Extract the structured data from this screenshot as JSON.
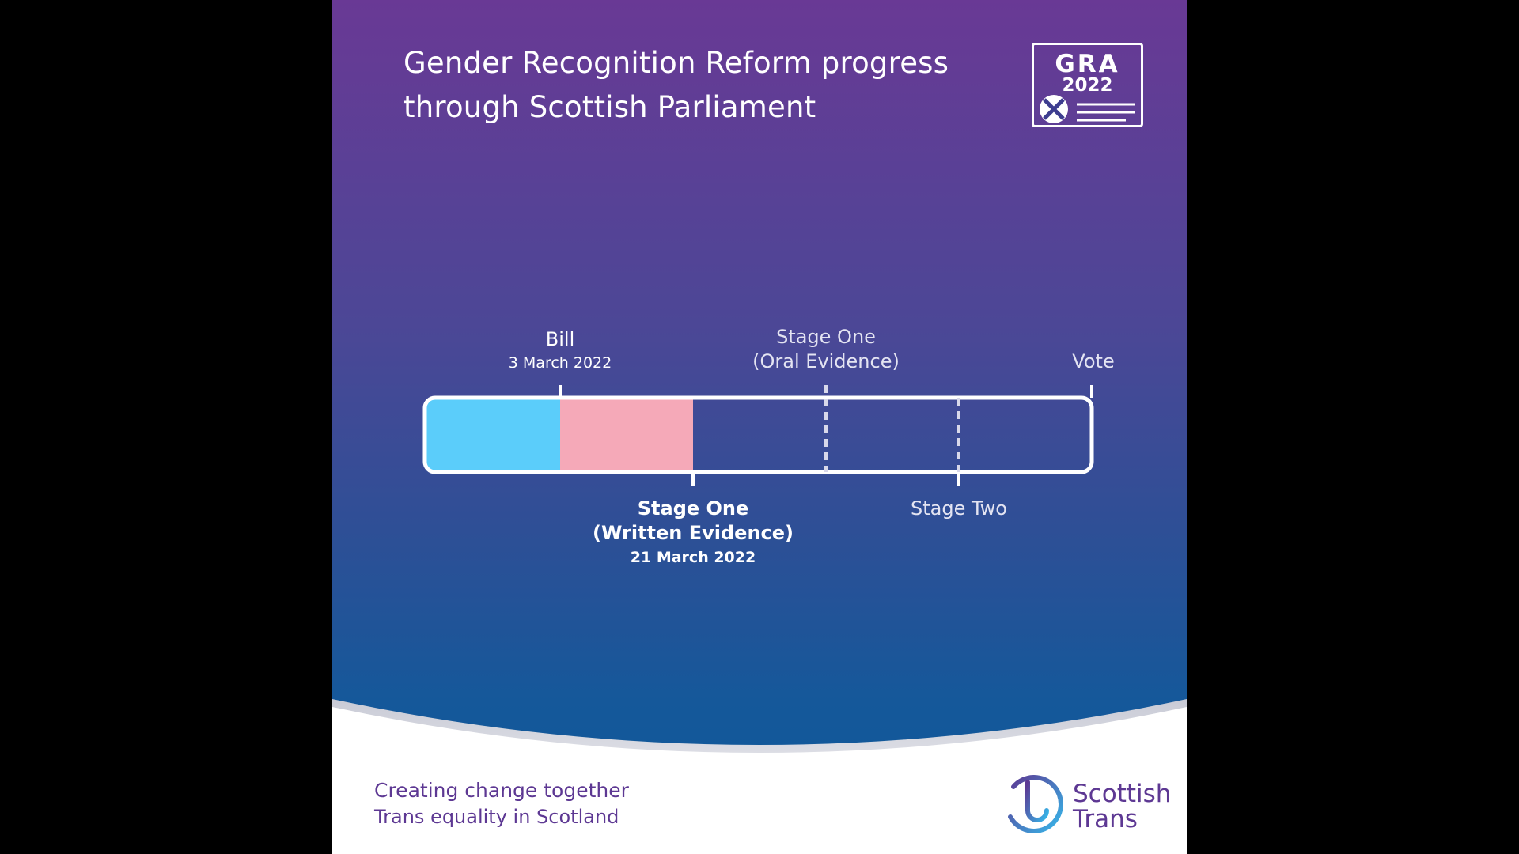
{
  "header": {
    "title_line1": "Gender Recognition Reform progress",
    "title_line2": "through Scottish Parliament",
    "badge_line1": "GRA",
    "badge_line2": "2022"
  },
  "timeline": {
    "colors": {
      "completed": "#5bcdfa",
      "current": "#f5a9b8",
      "outline": "#ffffff"
    },
    "segments": [
      {
        "label": "Bill",
        "date": "3 March 2022",
        "status": "completed"
      },
      {
        "label": "Stage One (Written Evidence)",
        "date": "21 March 2022",
        "status": "current"
      },
      {
        "label": "Stage One (Oral Evidence)",
        "status": "pending"
      },
      {
        "label": "Stage Two",
        "status": "pending"
      },
      {
        "label": "Vote",
        "status": "pending"
      }
    ],
    "labels": {
      "bill": "Bill",
      "bill_date": "3 March 2022",
      "oral_line1": "Stage One",
      "oral_line2": "(Oral Evidence)",
      "vote": "Vote",
      "written_line1": "Stage One",
      "written_line2": "(Written Evidence)",
      "written_date": "21 March 2022",
      "stage_two": "Stage Two"
    }
  },
  "footer": {
    "tagline1": "Creating change together",
    "tagline2": "Trans equality in Scotland",
    "brand_line1": "Scottish",
    "brand_line2": "Trans",
    "brand_color": "#5d3893"
  },
  "icons": {
    "badge": "saltire-flag-icon",
    "brand": "scottish-trans-logo-icon"
  }
}
